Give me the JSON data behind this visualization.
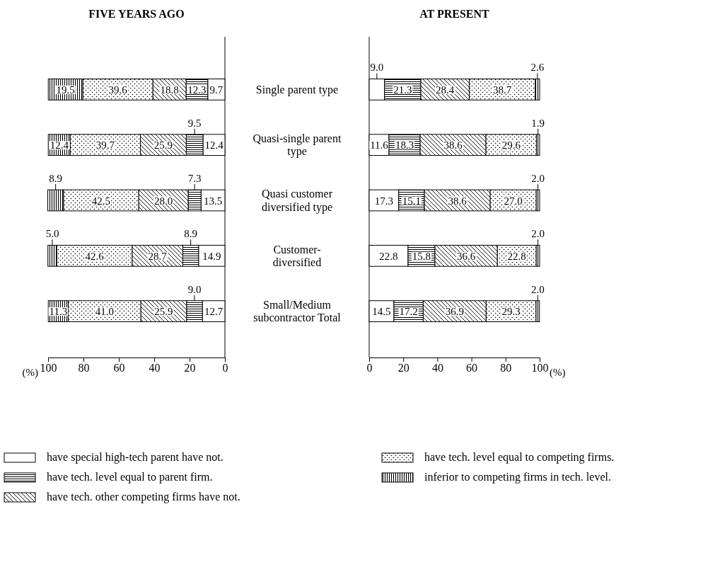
{
  "chart_data": [
    {
      "type": "bar",
      "title": "FIVE YEARS AGO",
      "orientation": "horizontal",
      "stacked": true,
      "xlabel": "(%)",
      "xlim": [
        100,
        0
      ],
      "xticks": [
        100,
        80,
        60,
        40,
        20,
        0
      ],
      "legend": "bottom",
      "categories": [
        "Single parent type",
        "Quasi-single parent type",
        "Quasi customer diversified type",
        "Customer-diversified",
        "Small/Medium subcontractor Total"
      ],
      "series": [
        {
          "name": "have special high-tech parent have not.",
          "color": "#ffffff",
          "values": [
            9.7,
            12.4,
            13.5,
            14.9,
            12.7
          ],
          "value_labels": [
            "9.7",
            "12.4",
            "13.5",
            "14.9",
            "12.7"
          ]
        },
        {
          "name": "have tech. level equal to parent firm.",
          "color": "#000000",
          "values": [
            12.3,
            9.5,
            7.3,
            8.9,
            9.0
          ],
          "value_labels": [
            "12.3",
            "9.5",
            "7.3",
            "8.9",
            "9.0"
          ]
        },
        {
          "name": "have tech. other competing firms have not.",
          "color": "#000000",
          "values": [
            18.8,
            25.9,
            28.0,
            28.7,
            25.9
          ],
          "value_labels": [
            "18.8",
            "25.9",
            "28.0",
            "28.7",
            "25.9"
          ]
        },
        {
          "name": "have tech. level equal to competing firms.",
          "color": "#000000",
          "values": [
            39.6,
            39.7,
            42.5,
            42.6,
            41.0
          ],
          "value_labels": [
            "39.6",
            "39.7",
            "42.5",
            "42.6",
            "41.0"
          ]
        },
        {
          "name": "inferior to competing firms in tech. level.",
          "color": "#000000",
          "values": [
            19.5,
            12.4,
            8.9,
            5.0,
            11.3
          ],
          "value_labels": [
            "19.5",
            "12.4",
            "8.9",
            "5.0",
            "11.3"
          ]
        }
      ]
    },
    {
      "type": "bar",
      "title": "AT PRESENT",
      "orientation": "horizontal",
      "stacked": true,
      "xlabel": "(%)",
      "xlim": [
        0,
        100
      ],
      "xticks": [
        0,
        20,
        40,
        60,
        80,
        100
      ],
      "tick_labels": "x",
      "categories": [
        "Single parent type",
        "Quasi-single parent type",
        "Quasi customer diversified type",
        "Customer-diversified",
        "Small/Medium subcontractor Total"
      ],
      "series": [
        {
          "color": "#ffffff",
          "values": [
            9.0,
            11.6,
            17.3,
            22.8,
            14.5
          ],
          "value_labels": [
            "9.0",
            "11.6",
            "17.3",
            "22.8",
            "14.5"
          ]
        },
        {
          "color": "#000000",
          "values": [
            21.3,
            18.3,
            15.1,
            15.8,
            17.2
          ],
          "value_labels": [
            "21.3",
            "18.3",
            "15.1",
            "15.8",
            "17.2"
          ]
        },
        {
          "color": "#000000",
          "values": [
            28.4,
            38.6,
            38.6,
            36.6,
            36.9
          ],
          "value_labels": [
            "28.4",
            "38.6",
            "38.6",
            "36.6",
            "36.9"
          ]
        },
        {
          "color": "#000000",
          "values": [
            38.7,
            29.6,
            27.0,
            22.8,
            29.3
          ],
          "value_labels": [
            "38.7",
            "29.6",
            "27.0",
            "22.8",
            "29.3"
          ]
        },
        {
          "color": "#000000",
          "values": [
            2.6,
            1.9,
            2.0,
            2.0,
            2.0
          ],
          "value_labels": [
            "2.6",
            "1.9",
            "2.0",
            "2.0",
            "2.0"
          ]
        }
      ]
    }
  ]
}
